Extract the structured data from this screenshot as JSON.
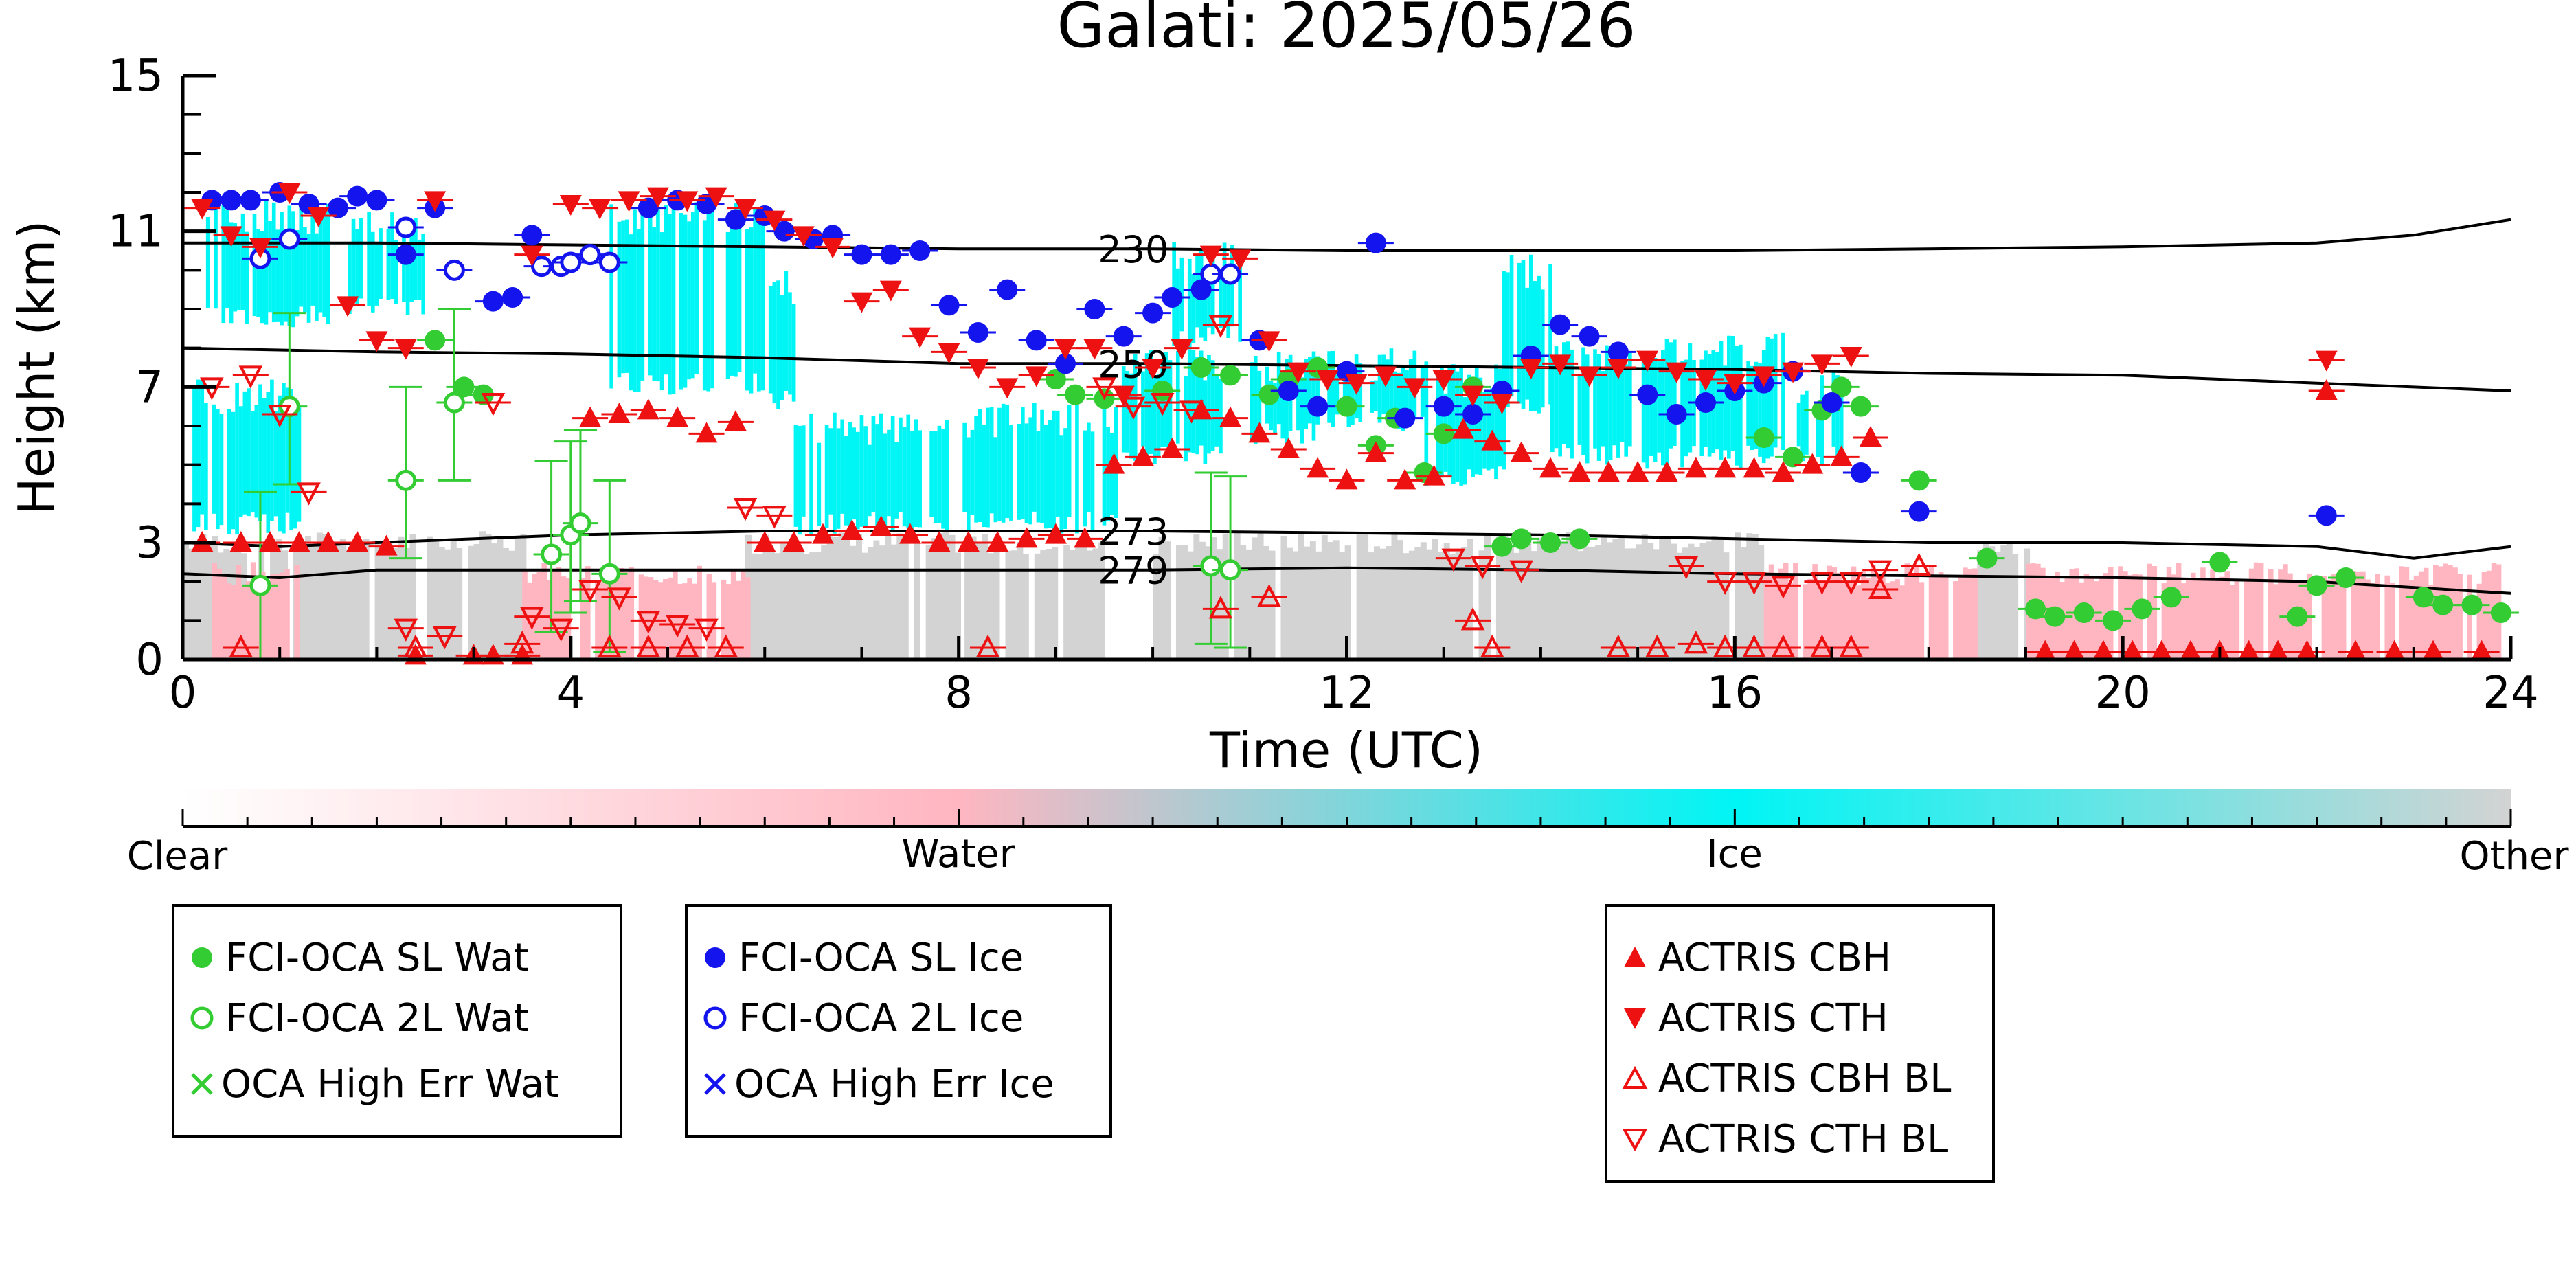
{
  "chart_data": {
    "type": "scatter",
    "title": "Galati: 2025/05/26",
    "xlabel": "Time (UTC)",
    "ylabel": "Height (km)",
    "xlim": [
      0,
      24
    ],
    "ylim": [
      0,
      15
    ],
    "xticks": [
      0,
      4,
      8,
      12,
      16,
      20,
      24
    ],
    "yticks": [
      0,
      3,
      7,
      11,
      15
    ],
    "grid": false,
    "colorbar": {
      "labels": [
        "Clear",
        "Water",
        "Ice",
        "Other"
      ],
      "colors": [
        "#ffffff",
        "#ffb6c1",
        "#00f5f5",
        "#d3d3d3"
      ]
    },
    "contours": [
      {
        "label": "230",
        "x": [
          0,
          2,
          4,
          6,
          8,
          10,
          12,
          14,
          16,
          18,
          20,
          22,
          23,
          24
        ],
        "y": [
          10.7,
          10.7,
          10.65,
          10.6,
          10.55,
          10.55,
          10.5,
          10.5,
          10.5,
          10.55,
          10.6,
          10.7,
          10.9,
          11.3
        ]
      },
      {
        "label": "250",
        "x": [
          0,
          2,
          4,
          6,
          8,
          10,
          12,
          14,
          16,
          18,
          20,
          22,
          24
        ],
        "y": [
          8.0,
          7.9,
          7.85,
          7.75,
          7.6,
          7.6,
          7.55,
          7.5,
          7.45,
          7.35,
          7.3,
          7.1,
          6.9
        ]
      },
      {
        "label": "273",
        "x": [
          0,
          1,
          2,
          4,
          6,
          8,
          10,
          12,
          14,
          16,
          18,
          20,
          22,
          23,
          24
        ],
        "y": [
          3.0,
          2.9,
          3.0,
          3.2,
          3.3,
          3.3,
          3.3,
          3.25,
          3.2,
          3.1,
          3.0,
          3.0,
          2.9,
          2.6,
          2.9
        ]
      },
      {
        "label": "279",
        "x": [
          0,
          1,
          2,
          4,
          6,
          8,
          10,
          12,
          14,
          16,
          18,
          20,
          22,
          24
        ],
        "y": [
          2.2,
          2.1,
          2.3,
          2.3,
          2.3,
          2.3,
          2.3,
          2.35,
          2.3,
          2.2,
          2.15,
          2.1,
          2.0,
          1.7
        ]
      }
    ],
    "series": [
      {
        "name": "FCI-OCA SL Wat",
        "marker": "filled-circle",
        "color": "#33cc33",
        "x": [
          2.6,
          2.9,
          3.1,
          9.0,
          9.2,
          9.5,
          10.1,
          10.5,
          10.8,
          11.2,
          11.4,
          11.7,
          12.0,
          12.3,
          12.5,
          12.8,
          13.0,
          13.3,
          13.6,
          13.8,
          14.1,
          14.4,
          16.3,
          16.6,
          16.9,
          17.1,
          17.3,
          17.9,
          18.6,
          19.1,
          19.3,
          19.6,
          19.9,
          20.2,
          20.5,
          21.0,
          21.8,
          22.0,
          22.3,
          23.1,
          23.3,
          23.6,
          23.9
        ],
        "y": [
          8.2,
          7.0,
          6.8,
          7.2,
          6.8,
          6.7,
          6.9,
          7.5,
          7.3,
          6.8,
          7.2,
          7.5,
          6.5,
          5.5,
          6.2,
          4.8,
          5.8,
          7.0,
          2.9,
          3.1,
          3.0,
          3.1,
          5.7,
          5.2,
          6.4,
          7.0,
          6.5,
          4.6,
          2.6,
          1.3,
          1.1,
          1.2,
          1.0,
          1.3,
          1.6,
          2.5,
          1.1,
          1.9,
          2.1,
          1.6,
          1.4,
          1.4,
          1.2
        ]
      },
      {
        "name": "FCI-OCA 2L Wat",
        "marker": "open-circle",
        "color": "#33cc33",
        "x": [
          0.8,
          1.1,
          2.3,
          2.8,
          3.8,
          4.0,
          4.1,
          4.4,
          10.6,
          10.8
        ],
        "y": [
          1.9,
          6.5,
          4.6,
          6.6,
          2.7,
          3.2,
          3.5,
          2.2,
          2.4,
          2.3
        ]
      },
      {
        "name": "FCI-OCA SL Ice",
        "marker": "filled-circle",
        "color": "#1414ee",
        "x": [
          0.3,
          0.5,
          0.7,
          1.0,
          1.3,
          1.6,
          1.8,
          2.0,
          2.3,
          2.6,
          3.2,
          3.4,
          3.6,
          4.8,
          5.1,
          5.4,
          5.7,
          6.0,
          6.2,
          6.5,
          6.7,
          7.0,
          7.3,
          7.6,
          7.9,
          8.2,
          8.5,
          8.8,
          9.1,
          9.4,
          9.7,
          10.0,
          10.2,
          10.5,
          11.1,
          11.4,
          11.7,
          12.0,
          12.3,
          12.6,
          13.0,
          13.3,
          13.6,
          13.9,
          14.2,
          14.5,
          14.8,
          15.1,
          15.4,
          15.7,
          16.0,
          16.3,
          16.6,
          17.0,
          17.3,
          17.9,
          22.1
        ],
        "y": [
          11.8,
          11.8,
          11.8,
          12.0,
          11.7,
          11.6,
          11.9,
          11.8,
          10.4,
          11.6,
          9.2,
          9.3,
          10.9,
          11.6,
          11.8,
          11.7,
          11.3,
          11.4,
          11.0,
          10.8,
          10.9,
          10.4,
          10.4,
          10.5,
          9.1,
          8.4,
          9.5,
          8.2,
          7.6,
          9.0,
          8.3,
          8.9,
          9.3,
          9.5,
          8.2,
          6.9,
          6.5,
          7.4,
          10.7,
          6.2,
          6.5,
          6.3,
          6.9,
          7.8,
          8.6,
          8.3,
          7.9,
          6.8,
          6.3,
          6.6,
          6.9,
          7.1,
          7.4,
          6.6,
          4.8,
          3.8,
          3.7
        ]
      },
      {
        "name": "FCI-OCA 2L Ice",
        "marker": "open-circle",
        "color": "#1414ee",
        "x": [
          0.8,
          1.1,
          2.3,
          2.8,
          3.7,
          3.9,
          4.0,
          4.2,
          4.4,
          10.6,
          10.8
        ],
        "y": [
          10.3,
          10.8,
          11.1,
          10.0,
          10.1,
          10.1,
          10.2,
          10.4,
          10.2,
          9.9,
          9.9
        ]
      },
      {
        "name": "OCA High Err Wat",
        "marker": "x",
        "color": "#33cc33",
        "x": [],
        "y": []
      },
      {
        "name": "OCA High Err Ice",
        "marker": "x",
        "color": "#1414ee",
        "x": [],
        "y": []
      },
      {
        "name": "ACTRIS CBH",
        "marker": "triangle-up-filled",
        "color": "#ee1111",
        "x": [
          0.2,
          0.6,
          0.9,
          1.2,
          1.5,
          1.8,
          2.1,
          2.4,
          3.0,
          3.2,
          3.5,
          4.2,
          4.5,
          4.8,
          5.1,
          5.4,
          5.7,
          6.0,
          6.3,
          6.6,
          6.9,
          7.2,
          7.5,
          7.8,
          8.1,
          8.4,
          8.7,
          9.0,
          9.3,
          9.6,
          9.9,
          10.2,
          10.5,
          10.8,
          11.1,
          11.4,
          11.7,
          12.0,
          12.3,
          12.6,
          12.9,
          13.2,
          13.5,
          13.8,
          14.1,
          14.4,
          14.7,
          15.0,
          15.3,
          15.6,
          15.9,
          16.2,
          16.5,
          16.8,
          17.1,
          17.4,
          19.2,
          19.5,
          19.8,
          20.1,
          20.4,
          20.7,
          21.0,
          21.3,
          21.6,
          21.9,
          22.1,
          22.4,
          22.8,
          23.2,
          23.7
        ],
        "y": [
          3.0,
          3.0,
          3.0,
          3.0,
          3.0,
          3.0,
          2.9,
          0.1,
          0.1,
          0.1,
          0.1,
          6.2,
          6.3,
          6.4,
          6.2,
          5.8,
          6.1,
          3.0,
          3.0,
          3.2,
          3.3,
          3.4,
          3.2,
          3.0,
          3.0,
          3.0,
          3.1,
          3.2,
          3.1,
          5.0,
          5.2,
          5.4,
          6.4,
          6.2,
          5.8,
          5.4,
          4.9,
          4.6,
          5.3,
          4.6,
          4.7,
          5.9,
          5.6,
          5.3,
          4.9,
          4.8,
          4.8,
          4.8,
          4.8,
          4.9,
          4.9,
          4.9,
          4.8,
          5.0,
          5.2,
          5.7,
          0.2,
          0.2,
          0.2,
          0.2,
          0.2,
          0.2,
          0.2,
          0.2,
          0.2,
          0.2,
          6.9,
          0.2,
          0.2,
          0.2,
          0.2
        ]
      },
      {
        "name": "ACTRIS CTH",
        "marker": "triangle-down-filled",
        "color": "#ee1111",
        "x": [
          0.2,
          0.5,
          0.8,
          1.1,
          1.4,
          1.7,
          2.0,
          2.3,
          2.6,
          3.6,
          4.0,
          4.3,
          4.6,
          4.9,
          5.2,
          5.5,
          5.8,
          6.1,
          6.4,
          6.7,
          7.0,
          7.3,
          7.6,
          7.9,
          8.2,
          8.5,
          8.8,
          9.1,
          9.4,
          9.7,
          10.0,
          10.3,
          10.6,
          10.9,
          11.2,
          11.5,
          11.8,
          12.1,
          12.4,
          12.7,
          13.0,
          13.3,
          13.6,
          13.9,
          14.2,
          14.5,
          14.8,
          15.1,
          15.4,
          15.7,
          16.0,
          16.3,
          16.6,
          16.9,
          17.2,
          22.1
        ],
        "y": [
          11.6,
          10.9,
          10.6,
          12.0,
          11.4,
          9.1,
          8.2,
          8.0,
          11.8,
          10.4,
          11.7,
          11.6,
          11.8,
          11.9,
          11.8,
          11.9,
          11.6,
          11.3,
          10.9,
          10.6,
          9.2,
          9.5,
          8.3,
          7.9,
          7.5,
          7.0,
          7.3,
          8.0,
          8.0,
          6.8,
          7.5,
          8.0,
          10.4,
          10.3,
          8.2,
          7.4,
          7.2,
          7.1,
          7.3,
          7.0,
          7.2,
          6.8,
          6.6,
          7.5,
          7.6,
          7.3,
          7.5,
          7.7,
          7.4,
          7.2,
          7.1,
          7.3,
          7.4,
          7.6,
          7.8,
          7.7
        ]
      },
      {
        "name": "ACTRIS CBH BL",
        "marker": "triangle-up-open",
        "color": "#ee1111",
        "x": [
          0.6,
          2.4,
          3.5,
          4.4,
          4.8,
          5.2,
          5.6,
          8.3,
          10.7,
          11.2,
          13.3,
          13.5,
          14.8,
          15.2,
          15.6,
          15.9,
          16.2,
          16.5,
          16.9,
          17.2,
          17.5,
          17.9
        ],
        "y": [
          0.3,
          0.3,
          0.4,
          0.3,
          0.3,
          0.3,
          0.3,
          0.3,
          1.3,
          1.6,
          1.0,
          0.3,
          0.3,
          0.3,
          0.4,
          0.3,
          0.3,
          0.3,
          0.3,
          0.3,
          1.8,
          2.4
        ]
      },
      {
        "name": "ACTRIS CTH BL",
        "marker": "triangle-down-open",
        "color": "#ee1111",
        "x": [
          0.3,
          0.7,
          1.0,
          1.3,
          2.3,
          2.7,
          3.2,
          3.6,
          3.9,
          4.2,
          4.5,
          4.8,
          5.1,
          5.4,
          5.8,
          6.1,
          9.5,
          9.8,
          10.1,
          10.4,
          10.7,
          13.1,
          13.4,
          13.8,
          15.5,
          15.9,
          16.2,
          16.5,
          16.9,
          17.2,
          17.5
        ],
        "y": [
          7.0,
          7.3,
          6.3,
          4.3,
          0.8,
          0.6,
          6.6,
          1.1,
          0.8,
          1.8,
          1.6,
          1.0,
          0.9,
          0.8,
          3.9,
          3.7,
          7.0,
          6.5,
          6.6,
          6.4,
          8.6,
          2.6,
          2.4,
          2.3,
          2.4,
          2.0,
          2.0,
          1.9,
          2.0,
          2.0,
          2.3
        ]
      }
    ],
    "legends": [
      {
        "entries": [
          "FCI-OCA SL Wat",
          "FCI-OCA 2L Wat",
          "OCA High Err Wat"
        ]
      },
      {
        "entries": [
          "FCI-OCA SL Ice",
          "FCI-OCA 2L Ice",
          "OCA High Err Ice"
        ]
      },
      {
        "entries": [
          "ACTRIS CBH",
          "ACTRIS CTH",
          "ACTRIS CBH BL",
          "ACTRIS CTH BL"
        ]
      }
    ]
  }
}
